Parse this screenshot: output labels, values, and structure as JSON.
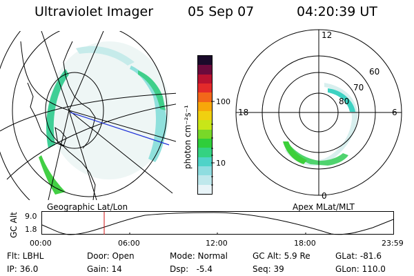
{
  "header": {
    "instrument": "Ultraviolet Imager",
    "date": "05 Sep 07",
    "time": "04:20:39 UT"
  },
  "left_panel": {
    "caption": "Geographic Lat/Lon"
  },
  "right_panel": {
    "caption": "Apex MLat/MLT",
    "mlt_labels": [
      "12",
      "18",
      "6",
      "0"
    ],
    "mlat_labels": [
      "60",
      "70",
      "80"
    ]
  },
  "colorbar": {
    "unit_label": "photon cm⁻²s⁻¹",
    "tick_labels": [
      "100",
      "10"
    ],
    "colors": [
      "#e8f4f8",
      "#bfe8ec",
      "#8fdde0",
      "#4fd3c8",
      "#34d282",
      "#2fce3a",
      "#78d828",
      "#c8e618",
      "#f0d010",
      "#f7a70a",
      "#f2671a",
      "#e32a2a",
      "#b81230",
      "#6a0a3c",
      "#1a0a2a"
    ]
  },
  "altitude_plot": {
    "y_axis_label": "GC Alt",
    "y_ticks": [
      "9.0",
      "1.8"
    ],
    "x_ticks": [
      "00:00",
      "06:00",
      "12:00",
      "18:00",
      "23:59"
    ],
    "cursor_time": "04:20"
  },
  "status": {
    "row1": {
      "filter": "Flt: LBHL",
      "door": "Door: Open",
      "mode": "Mode: Normal",
      "gc_alt": "GC Alt: 5.9 Re",
      "glat": "GLat: -81.6"
    },
    "row2": {
      "ip": "IP: 36.0",
      "gain": "Gain: 14",
      "dsp": "Dsp:   -5.4",
      "seq": "Seq: 39",
      "glon": "GLon: 110.0"
    }
  }
}
